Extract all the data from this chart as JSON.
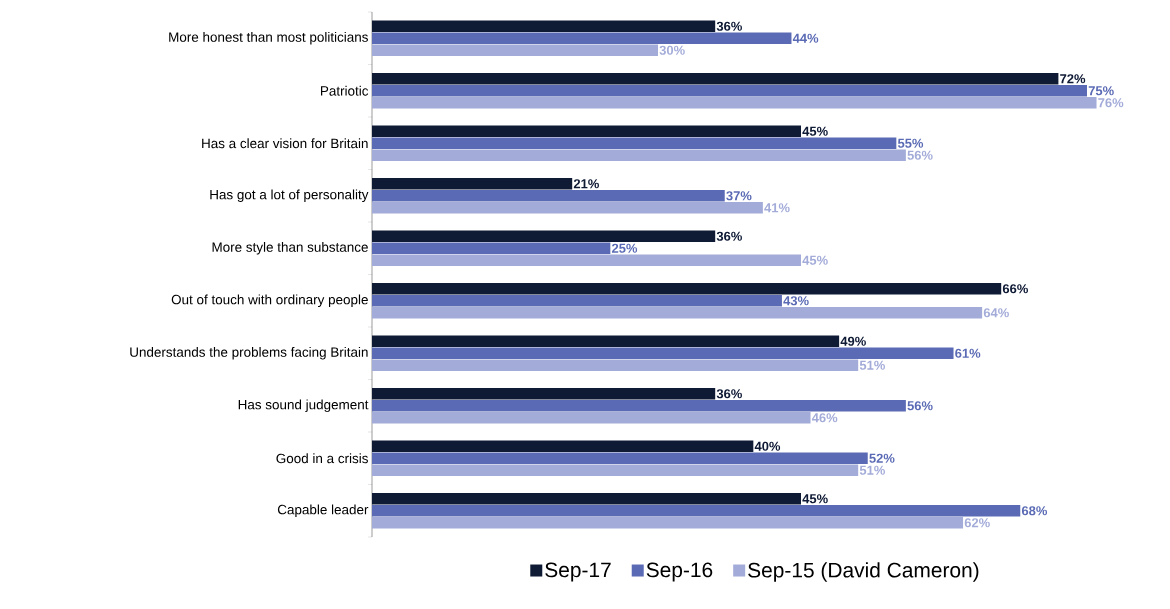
{
  "chart_data": {
    "type": "bar",
    "orientation": "horizontal",
    "legend": "bottom",
    "categories": [
      "More honest than most politicians",
      "Patriotic",
      "Has a clear vision for Britain",
      "Has got a lot of personality",
      "More style than substance",
      "Out of touch with ordinary people",
      "Understands the problems facing Britain",
      "Has sound judgement",
      "Good in a crisis",
      "Capable leader"
    ],
    "series": [
      {
        "name": "Sep-17",
        "color": "#0f1a35",
        "values": [
          36,
          72,
          45,
          21,
          36,
          66,
          49,
          36,
          40,
          45
        ],
        "value_labels": [
          "36%",
          "72%",
          "45%",
          "21%",
          "36%",
          "66%",
          "49%",
          "36%",
          "40%",
          "45%"
        ]
      },
      {
        "name": "Sep-16",
        "color": "#5a6ab4",
        "values": [
          44,
          75,
          55,
          37,
          25,
          43,
          61,
          56,
          52,
          68
        ],
        "value_labels": [
          "44%",
          "75%",
          "55%",
          "37%",
          "25%",
          "43%",
          "61%",
          "56%",
          "52%",
          "68%"
        ]
      },
      {
        "name": "Sep-15 (David Cameron)",
        "color": "#a3abd8",
        "values": [
          30,
          76,
          56,
          41,
          45,
          64,
          51,
          46,
          51,
          62
        ],
        "value_labels": [
          "30%",
          "76%",
          "56%",
          "41%",
          "45%",
          "64%",
          "51%",
          "46%",
          "51%",
          "62%"
        ]
      }
    ]
  }
}
